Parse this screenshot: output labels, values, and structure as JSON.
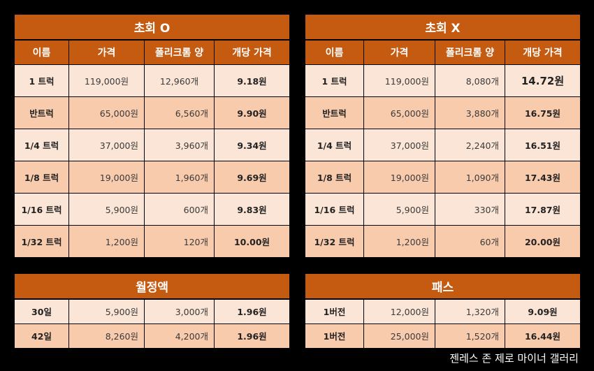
{
  "tables": [
    {
      "id": "chohoe-o",
      "title": "초회 O",
      "headers": [
        "이름",
        "가격",
        "폴리크롬 양",
        "개당 가격"
      ],
      "rows": [
        [
          "1 트럭",
          "119,000원",
          "12,960개",
          "9.18원"
        ],
        [
          "반트럭",
          "65,000원",
          "6,560개",
          "9.90원"
        ],
        [
          "1/4 트럭",
          "37,000원",
          "3,960개",
          "9.34원"
        ],
        [
          "1/8 트럭",
          "19,000원",
          "1,960개",
          "9.69원"
        ],
        [
          "1/16 트럭",
          "5,900원",
          "600개",
          "9.83원"
        ],
        [
          "1/32 트럭",
          "1,200원",
          "120개",
          "10.00원"
        ]
      ]
    },
    {
      "id": "chohoe-x",
      "title": "초회 X",
      "headers": [
        "이름",
        "가격",
        "폴리크롬 양",
        "개당 가격"
      ],
      "rows": [
        [
          "1 트럭",
          "119,000원",
          "8,080개",
          "14.72원"
        ],
        [
          "반트럭",
          "65,000원",
          "3,880개",
          "16.75원"
        ],
        [
          "1/4 트럭",
          "37,000원",
          "2,240개",
          "16.51원"
        ],
        [
          "1/8 트럭",
          "19,000원",
          "1,090개",
          "17.43원"
        ],
        [
          "1/16 트럭",
          "5,900원",
          "330개",
          "17.87원"
        ],
        [
          "1/32 트럭",
          "1,200원",
          "60개",
          "20.00원"
        ]
      ]
    },
    {
      "id": "monthly",
      "title": "월정액",
      "rows": [
        [
          "30일",
          "5,900원",
          "3,000개",
          "1.96원"
        ],
        [
          "42일",
          "8,260원",
          "4,200개",
          "1.96원"
        ]
      ]
    },
    {
      "id": "pass",
      "title": "패스",
      "rows": [
        [
          "1버전",
          "12,000원",
          "1,320개",
          "9.09원"
        ],
        [
          "1버전",
          "25,000원",
          "1,520개",
          "16.44원"
        ]
      ]
    }
  ],
  "footer": "젠레스 존 제로 마이너 갤러리"
}
